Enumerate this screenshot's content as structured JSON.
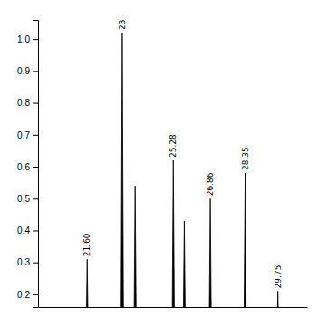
{
  "chart_data": {
    "type": "stem",
    "x": [
      21.6,
      23.1,
      23.65,
      25.28,
      25.75,
      26.86,
      28.35,
      29.75
    ],
    "values": [
      0.31,
      1.02,
      0.54,
      0.62,
      0.43,
      0.5,
      0.58,
      0.21
    ],
    "color": "#000000",
    "xlim": [
      19.5,
      31.0
    ],
    "ylim": [
      0.16,
      1.06
    ],
    "yticks": [
      0.2,
      0.3,
      0.4,
      0.5,
      0.6,
      0.7,
      0.8,
      0.9,
      {
        "value": 1.0,
        "label": "1.0"
      }
    ],
    "tick_labels": "y",
    "grid": false,
    "annotations": [
      {
        "text": "21.60",
        "x": 21.6,
        "y": 0.31
      },
      {
        "text": "23",
        "x": 23.1,
        "y": 1.02
      },
      {
        "text": "25.28",
        "x": 25.28,
        "y": 0.62
      },
      {
        "text": "26.86",
        "x": 26.86,
        "y": 0.5
      },
      {
        "text": "28.35",
        "x": 28.35,
        "y": 0.58
      },
      {
        "text": "29.75",
        "x": 29.75,
        "y": 0.21
      }
    ]
  }
}
